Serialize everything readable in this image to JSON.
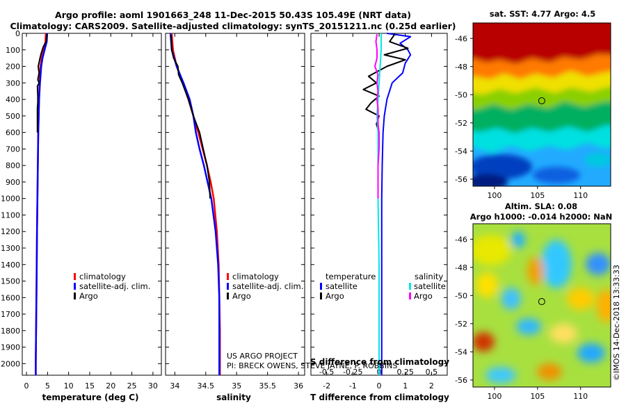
{
  "title_line1": "Argo profile: aoml 1901663_248 11-Dec-2015 50.43S 105.49E (NRT data)",
  "title_line2": "Climatology: CARS2009. Satellite-adjusted climatology: synTS_20151211.nc (0.25d earlier)",
  "colors": {
    "climatology": "#ff0000",
    "satellite": "#0000ff",
    "argo": "#000000",
    "salinity_satellite": "#00e8e8",
    "salinity_argo": "#ff00ff"
  },
  "chart_data": [
    {
      "id": "temperature",
      "type": "line",
      "xlabel": "temperature (deg C)",
      "xlim": [
        -1,
        32
      ],
      "xticks": [
        0,
        5,
        10,
        15,
        20,
        25,
        30
      ],
      "ylim": [
        2070,
        0
      ],
      "yticks": [
        0,
        100,
        200,
        300,
        400,
        500,
        600,
        700,
        800,
        900,
        1000,
        1100,
        1200,
        1300,
        1400,
        1500,
        1600,
        1700,
        1800,
        1900,
        2000
      ],
      "legend": [
        "climatology",
        "satellite-adj. clim.",
        "Argo"
      ],
      "series": [
        {
          "name": "climatology",
          "color": "#ff0000",
          "depth": [
            0,
            50,
            100,
            150,
            200,
            300,
            400,
            600,
            800,
            1000,
            1200,
            1500,
            2000,
            2070
          ],
          "values": [
            4.6,
            4.5,
            4.1,
            3.6,
            3.3,
            3.1,
            3.0,
            2.8,
            2.7,
            2.6,
            2.5,
            2.4,
            2.2,
            2.2
          ]
        },
        {
          "name": "satellite-adj. clim.",
          "color": "#0000ff",
          "depth": [
            0,
            50,
            100,
            150,
            200,
            300,
            400,
            600,
            800,
            1000,
            1200,
            1500,
            2000,
            2070
          ],
          "values": [
            4.9,
            4.8,
            4.3,
            3.8,
            3.5,
            3.2,
            3.0,
            2.8,
            2.7,
            2.6,
            2.5,
            2.4,
            2.2,
            2.2
          ]
        },
        {
          "name": "Argo",
          "color": "#000000",
          "depth": [
            5,
            50,
            80,
            120,
            150,
            200,
            240,
            280,
            300,
            320,
            380,
            420,
            450,
            500,
            560,
            600
          ],
          "values": [
            4.8,
            4.7,
            4.0,
            3.5,
            3.2,
            2.8,
            3.0,
            2.7,
            3.0,
            2.6,
            2.7,
            2.7,
            2.6,
            2.6,
            2.6,
            2.6
          ]
        }
      ]
    },
    {
      "id": "salinity",
      "type": "line",
      "xlabel": "salinity",
      "xlim": [
        33.85,
        36.1
      ],
      "xticks": [
        34,
        34.5,
        35,
        35.5,
        36
      ],
      "ylim": [
        2070,
        0
      ],
      "legend": [
        "climatology",
        "satellite-adj. clim.",
        "Argo"
      ],
      "series": [
        {
          "name": "climatology",
          "color": "#ff0000",
          "depth": [
            0,
            100,
            200,
            300,
            400,
            500,
            600,
            700,
            800,
            900,
            1000,
            1200,
            1400,
            1600,
            1800,
            2070
          ],
          "values": [
            33.95,
            33.97,
            34.03,
            34.13,
            34.22,
            34.3,
            34.38,
            34.45,
            34.52,
            34.58,
            34.63,
            34.68,
            34.71,
            34.72,
            34.73,
            34.73
          ]
        },
        {
          "name": "satellite-adj. clim.",
          "color": "#0000ff",
          "depth": [
            0,
            100,
            200,
            300,
            400,
            500,
            600,
            700,
            800,
            900,
            1000,
            1200,
            1400,
            1600,
            1800,
            2070
          ],
          "values": [
            33.93,
            33.95,
            34.03,
            34.14,
            34.24,
            34.3,
            34.34,
            34.4,
            34.47,
            34.53,
            34.59,
            34.66,
            34.7,
            34.72,
            34.72,
            34.72
          ]
        },
        {
          "name": "Argo",
          "color": "#000000",
          "depth": [
            10,
            100,
            150,
            200,
            250,
            300,
            400,
            500,
            600,
            700,
            800,
            900,
            1000
          ],
          "values": [
            33.94,
            33.95,
            33.98,
            34.05,
            34.06,
            34.12,
            34.22,
            34.3,
            34.4,
            34.46,
            34.52,
            34.56,
            34.57
          ]
        }
      ]
    },
    {
      "id": "difference",
      "type": "line",
      "xlabel": "T difference from climatology",
      "xlabel_top": "S difference from climatology",
      "xlim": [
        -2.6,
        2.6
      ],
      "xticks": [
        -2,
        -1,
        0,
        1,
        2
      ],
      "xticks_salinity_label": [
        "-0.5",
        "-0.25",
        "0",
        "0.25",
        "0.5"
      ],
      "ylim": [
        2070,
        0
      ],
      "legend_temperature_title": "temperature",
      "legend_salinity_title": "salinity",
      "legend_entries": [
        "satellite",
        "Argo",
        "satellite",
        "Argo"
      ],
      "series": [
        {
          "name": "temperature satellite",
          "color": "#0000ff",
          "depth": [
            0,
            20,
            60,
            100,
            130,
            180,
            240,
            300,
            400,
            500,
            600,
            800,
            1000,
            1400,
            2070
          ],
          "values": [
            0.3,
            1.2,
            0.8,
            1.1,
            1.2,
            1.0,
            0.9,
            0.5,
            0.3,
            0.2,
            0.15,
            0.12,
            0.1,
            0.1,
            0.1
          ]
        },
        {
          "name": "temperature Argo",
          "color": "#000000",
          "depth": [
            5,
            50,
            90,
            130,
            160,
            200,
            260,
            300,
            340,
            380,
            420,
            460,
            500,
            550,
            600
          ],
          "values": [
            0.6,
            0.4,
            1.1,
            0.2,
            1.0,
            0.3,
            -0.4,
            -0.1,
            -0.6,
            0.0,
            -0.3,
            -0.5,
            0.0,
            -0.1,
            0.0
          ]
        },
        {
          "name": "salinity satellite",
          "color": "#00e8e8",
          "depth": [
            0,
            100,
            200,
            300,
            400,
            500,
            600,
            800,
            1000,
            1400,
            2070
          ],
          "values": [
            0.02,
            0.02,
            0.01,
            0.0,
            -0.01,
            -0.02,
            -0.01,
            -0.01,
            -0.01,
            0.0,
            0.0
          ]
        },
        {
          "name": "salinity Argo",
          "color": "#ff00ff",
          "depth": [
            5,
            50,
            100,
            150,
            200,
            250,
            300,
            350,
            400,
            450,
            500,
            550,
            600,
            700,
            800,
            900,
            1000
          ],
          "values": [
            -0.02,
            -0.03,
            -0.02,
            -0.02,
            -0.04,
            -0.01,
            -0.02,
            -0.01,
            -0.02,
            -0.01,
            -0.01,
            -0.01,
            0.0,
            0.0,
            -0.01,
            -0.01,
            -0.01
          ]
        }
      ]
    },
    {
      "id": "sst_map",
      "type": "heatmap",
      "title": "sat. SST: 4.77 Argo: 4.5",
      "x_ticks": [
        100,
        105,
        110
      ],
      "y_ticks": [
        -46,
        -48,
        -50,
        -52,
        -54,
        -56
      ],
      "xlim": [
        97.5,
        113.5
      ],
      "ylim": [
        -56.5,
        -44.9
      ],
      "marker": {
        "lon": 105.49,
        "lat": -50.43
      }
    },
    {
      "id": "sla_map",
      "type": "heatmap",
      "title_line1": "Altim. SLA: 0.08",
      "title_line2": "Argo h1000: -0.014 h2000: NaN",
      "x_ticks": [
        100,
        105,
        110
      ],
      "y_ticks": [
        -46,
        -48,
        -50,
        -52,
        -54,
        -56
      ],
      "xlim": [
        97.5,
        113.5
      ],
      "ylim": [
        -56.5,
        -44.9
      ],
      "marker": {
        "lon": 105.49,
        "lat": -50.43
      }
    }
  ],
  "credits": {
    "project": "US ARGO PROJECT",
    "pi": "PI: BRECK OWENS, STEVE JAYNE, P. ROBBINS",
    "imos": "©IMOS 14-Dec-2018 13:33:33"
  }
}
